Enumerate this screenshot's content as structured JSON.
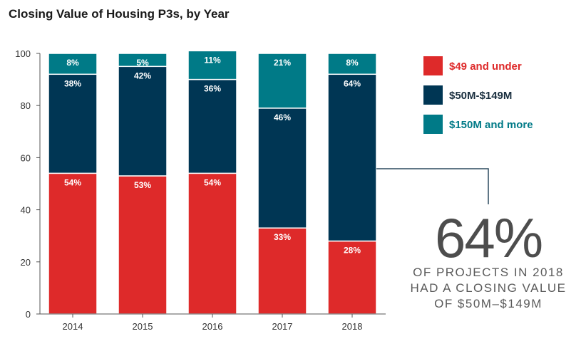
{
  "chart_data": {
    "type": "bar",
    "stacked": true,
    "title": "Closing Value of Housing P3s, by Year",
    "categories": [
      "2014",
      "2015",
      "2016",
      "2017",
      "2018"
    ],
    "series": [
      {
        "name": "$49 and under",
        "color": "#de2a2a",
        "values": [
          54,
          53,
          54,
          33,
          28
        ],
        "labels": [
          "54%",
          "53%",
          "54%",
          "33%",
          "28%"
        ]
      },
      {
        "name": "$50M-$149M",
        "color": "#003654",
        "values": [
          38,
          42,
          36,
          46,
          64
        ],
        "labels": [
          "38%",
          "42%",
          "36%",
          "46%",
          "64%"
        ]
      },
      {
        "name": "$150M and more",
        "color": "#007a87",
        "values": [
          8,
          5,
          11,
          21,
          8
        ],
        "labels": [
          "8%",
          "5%",
          "11%",
          "21%",
          "8%"
        ]
      }
    ],
    "ylim": [
      0,
      100
    ],
    "yticks": [
      "0",
      "20",
      "40",
      "60",
      "80",
      "100"
    ],
    "legend_position": "right",
    "grid": false
  },
  "callout": {
    "value": "64%",
    "lines": [
      "OF PROJECTS IN 2018",
      "HAD A CLOSING VALUE",
      "OF $50M–$149M"
    ]
  }
}
